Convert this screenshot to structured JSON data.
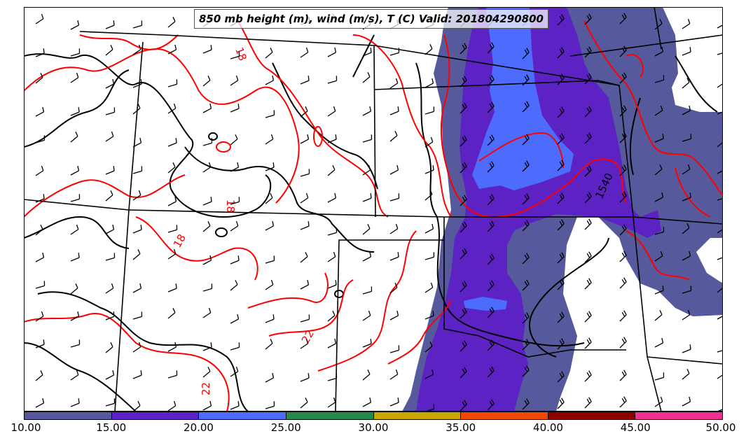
{
  "title": "850 mb height (m), wind (m/s), T (C) Valid: 201804290800",
  "contour_labels": {
    "height_1540": "1540",
    "temp_18a": "18",
    "temp_18b": "18",
    "temp_18c": "18",
    "temp_22a": "22",
    "temp_22b": "22"
  },
  "colorbar": {
    "ticks": [
      "10.00",
      "15.00",
      "20.00",
      "25.00",
      "30.00",
      "35.00",
      "40.00",
      "45.00",
      "50.00"
    ],
    "colors": [
      "#565a9c",
      "#5c22c4",
      "#4d6bfc",
      "#238c4c",
      "#c8a800",
      "#f04800",
      "#8c0000",
      "#f03094"
    ]
  },
  "colors": {
    "temperature_contour": "#ff0000",
    "height_contour": "#000000",
    "wind_barb": "#000000",
    "boundary": "#000000"
  },
  "icons": {
    "wind_barb": "wind-barb-icon"
  }
}
